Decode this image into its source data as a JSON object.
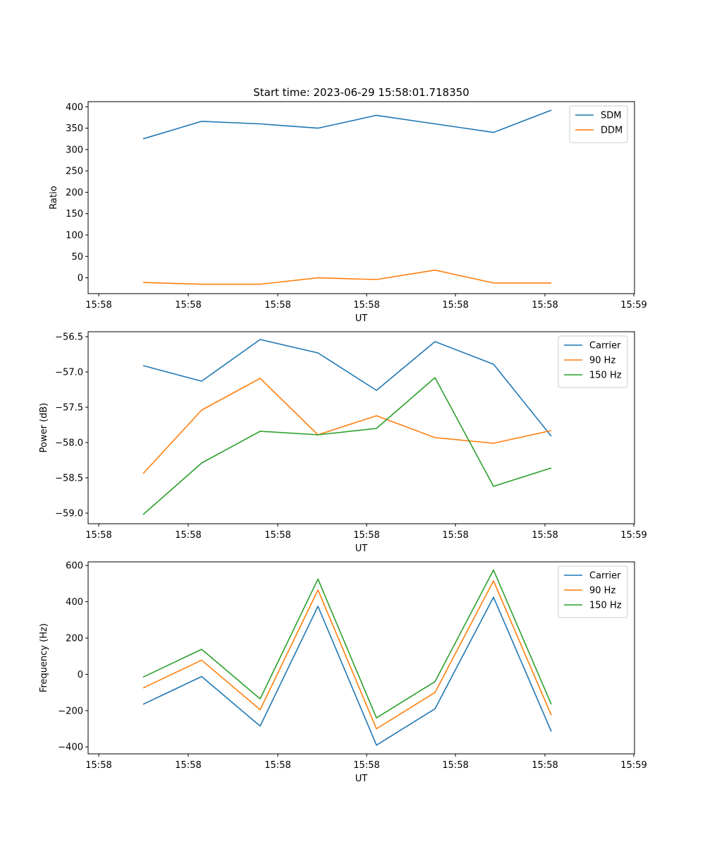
{
  "title": "Start time: 2023-06-29 15:58:01.718350",
  "colors": {
    "blue": "#1f77b4",
    "orange": "#ff7f0e",
    "green": "#2ca02c"
  },
  "chart_data": [
    {
      "type": "line",
      "xlabel": "UT",
      "ylabel": "Ratio",
      "x_tick_labels": [
        "15:58",
        "15:58",
        "15:58",
        "15:58",
        "15:58",
        "15:58",
        "15:59"
      ],
      "ylim": [
        -37,
        412
      ],
      "yticks": [
        0,
        50,
        100,
        150,
        200,
        250,
        300,
        350,
        400
      ],
      "legend": "top-right",
      "series": [
        {
          "name": "SDM",
          "color": "#1f77b4",
          "values": [
            325,
            366,
            360,
            350,
            380,
            360,
            340,
            392
          ]
        },
        {
          "name": "DDM",
          "color": "#ff7f0e",
          "values": [
            -11,
            -15,
            -15,
            0,
            -4,
            18,
            -12,
            -12
          ]
        }
      ]
    },
    {
      "type": "line",
      "xlabel": "UT",
      "ylabel": "Power (dB)",
      "x_tick_labels": [
        "15:58",
        "15:58",
        "15:58",
        "15:58",
        "15:58",
        "15:58",
        "15:59"
      ],
      "ylim": [
        -59.15,
        -56.43
      ],
      "yticks": [
        -59.0,
        -58.5,
        -58.0,
        -57.5,
        -57.0,
        -56.5
      ],
      "ytick_labels": [
        "−59.0",
        "−58.5",
        "−58.0",
        "−57.5",
        "−57.0",
        "−56.5"
      ],
      "legend": "top-right",
      "series": [
        {
          "name": "Carrier",
          "color": "#1f77b4",
          "values": [
            -56.91,
            -57.13,
            -56.54,
            -56.73,
            -57.26,
            -56.57,
            -56.89,
            -57.91
          ]
        },
        {
          "name": "90 Hz",
          "color": "#ff7f0e",
          "values": [
            -58.44,
            -57.54,
            -57.09,
            -57.89,
            -57.62,
            -57.93,
            -58.01,
            -57.83
          ]
        },
        {
          "name": "150 Hz",
          "color": "#2ca02c",
          "values": [
            -59.02,
            -58.29,
            -57.84,
            -57.89,
            -57.8,
            -57.08,
            -58.62,
            -58.36
          ]
        }
      ]
    },
    {
      "type": "line",
      "xlabel": "UT",
      "ylabel": "Frequency (Hz)",
      "x_tick_labels": [
        "15:58",
        "15:58",
        "15:58",
        "15:58",
        "15:58",
        "15:58",
        "15:59"
      ],
      "ylim": [
        -438,
        620
      ],
      "yticks": [
        -400,
        -200,
        0,
        200,
        400,
        600
      ],
      "ytick_labels": [
        "−400",
        "−200",
        "0",
        "200",
        "400",
        "600"
      ],
      "legend": "top-right",
      "series": [
        {
          "name": "Carrier",
          "color": "#1f77b4",
          "values": [
            -165,
            -12,
            -285,
            375,
            -390,
            -190,
            425,
            -315
          ]
        },
        {
          "name": "90 Hz",
          "color": "#ff7f0e",
          "values": [
            -75,
            78,
            -195,
            465,
            -300,
            -100,
            515,
            -225
          ]
        },
        {
          "name": "150 Hz",
          "color": "#2ca02c",
          "values": [
            -15,
            138,
            -135,
            525,
            -240,
            -40,
            575,
            -165
          ]
        }
      ]
    }
  ]
}
